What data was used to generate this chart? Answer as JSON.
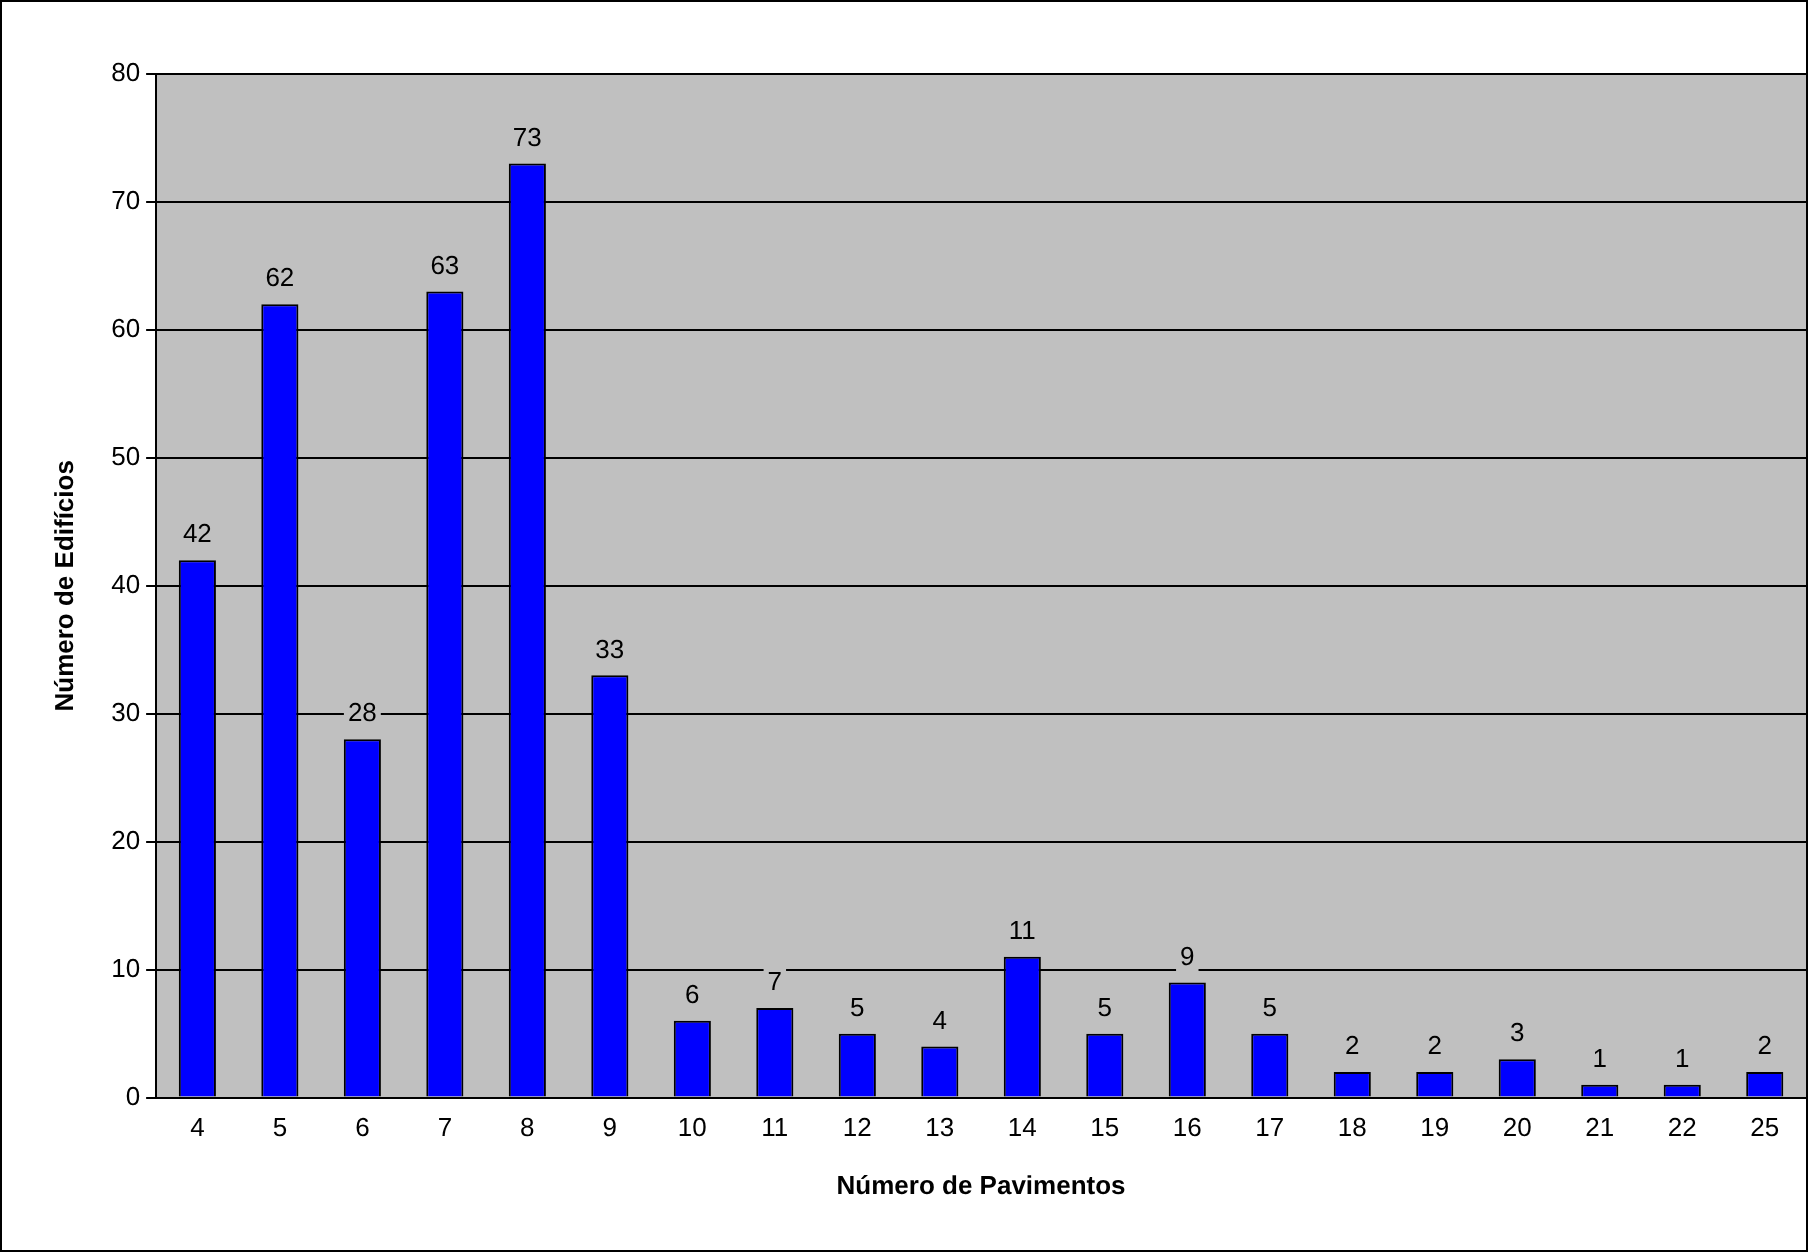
{
  "chart_data": {
    "type": "bar",
    "xlabel": "Número de Pavimentos",
    "ylabel": "Número de Edifícios",
    "categories": [
      "4",
      "5",
      "6",
      "7",
      "8",
      "9",
      "10",
      "11",
      "12",
      "13",
      "14",
      "15",
      "16",
      "17",
      "18",
      "19",
      "20",
      "21",
      "22",
      "25"
    ],
    "values": [
      42,
      62,
      28,
      63,
      73,
      33,
      6,
      7,
      5,
      4,
      11,
      5,
      9,
      5,
      2,
      2,
      3,
      1,
      1,
      2
    ],
    "color": "#0000ff",
    "ylim": [
      0,
      80
    ],
    "yticks": [
      0,
      10,
      20,
      30,
      40,
      50,
      60,
      70,
      80
    ],
    "grid": "y",
    "data_labels": true,
    "legend": false
  }
}
